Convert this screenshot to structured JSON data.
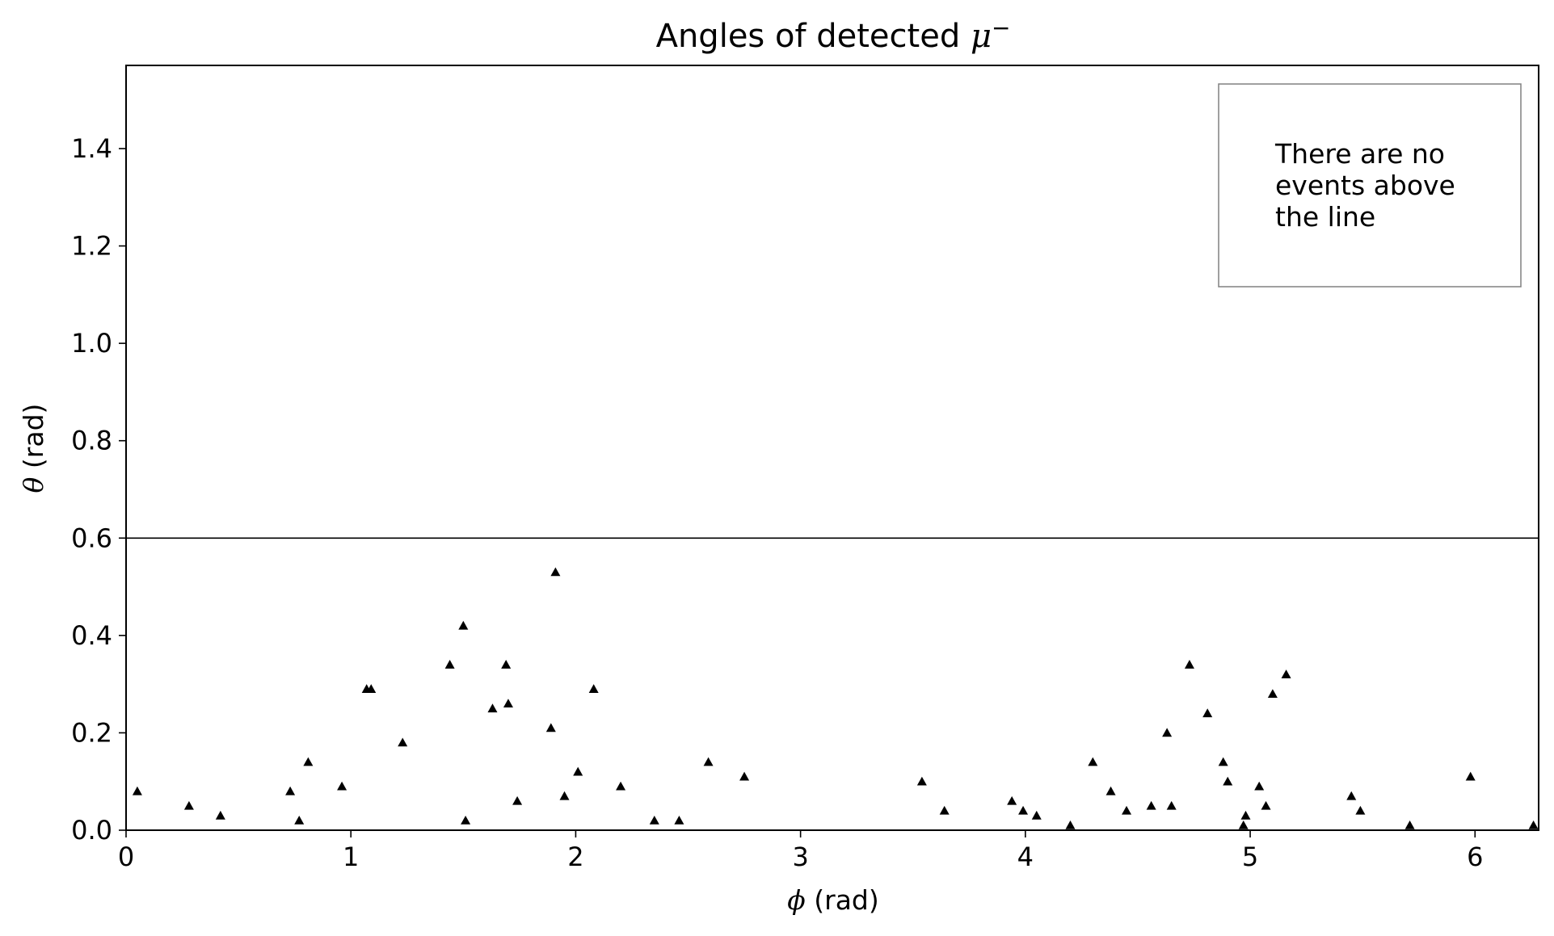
{
  "chart_data": {
    "type": "scatter",
    "title": "Angles of detected",
    "title_symbol": "μ",
    "title_superscript": "−",
    "xlabel_symbol": "ϕ",
    "xlabel_unit": "(rad)",
    "ylabel_symbol": "θ",
    "ylabel_unit": "(rad)",
    "xlim": [
      0,
      6.283
    ],
    "ylim": [
      0,
      1.5708
    ],
    "x_ticks": [
      0,
      1,
      2,
      3,
      4,
      5,
      6
    ],
    "x_tick_labels": [
      "0",
      "1",
      "2",
      "3",
      "4",
      "5",
      "6"
    ],
    "y_ticks": [
      0.0,
      0.2,
      0.4,
      0.6,
      0.8,
      1.0,
      1.2,
      1.4
    ],
    "y_tick_labels": [
      "0.0",
      "0.2",
      "0.4",
      "0.6",
      "0.8",
      "1.0",
      "1.2",
      "1.4"
    ],
    "grid": false,
    "marker": "triangle",
    "marker_color": "#000000",
    "hline": {
      "y": 0.6,
      "color": "#000000"
    },
    "annotation": {
      "lines": [
        "There are no",
        "events above",
        "the line"
      ],
      "placement": "top-right",
      "border_color": "#808080"
    },
    "series": [
      {
        "points": [
          [
            0.05,
            0.08
          ],
          [
            0.28,
            0.05
          ],
          [
            0.42,
            0.03
          ],
          [
            0.73,
            0.08
          ],
          [
            0.77,
            0.02
          ],
          [
            0.81,
            0.14
          ],
          [
            0.96,
            0.09
          ],
          [
            1.07,
            0.29
          ],
          [
            1.09,
            0.29
          ],
          [
            1.23,
            0.18
          ],
          [
            1.44,
            0.34
          ],
          [
            1.5,
            0.42
          ],
          [
            1.51,
            0.02
          ],
          [
            1.63,
            0.25
          ],
          [
            1.69,
            0.34
          ],
          [
            1.7,
            0.26
          ],
          [
            1.74,
            0.06
          ],
          [
            1.89,
            0.21
          ],
          [
            1.91,
            0.53
          ],
          [
            1.95,
            0.07
          ],
          [
            2.01,
            0.12
          ],
          [
            2.08,
            0.29
          ],
          [
            2.2,
            0.09
          ],
          [
            2.35,
            0.02
          ],
          [
            2.46,
            0.02
          ],
          [
            2.59,
            0.14
          ],
          [
            2.75,
            0.11
          ],
          [
            3.54,
            0.1
          ],
          [
            3.64,
            0.04
          ],
          [
            3.94,
            0.06
          ],
          [
            3.99,
            0.04
          ],
          [
            4.05,
            0.03
          ],
          [
            4.2,
            0.01
          ],
          [
            4.3,
            0.14
          ],
          [
            4.38,
            0.08
          ],
          [
            4.45,
            0.04
          ],
          [
            4.56,
            0.05
          ],
          [
            4.63,
            0.2
          ],
          [
            4.65,
            0.05
          ],
          [
            4.73,
            0.34
          ],
          [
            4.81,
            0.24
          ],
          [
            4.88,
            0.14
          ],
          [
            4.9,
            0.1
          ],
          [
            4.97,
            0.01
          ],
          [
            4.98,
            0.03
          ],
          [
            5.04,
            0.09
          ],
          [
            5.07,
            0.05
          ],
          [
            5.1,
            0.28
          ],
          [
            5.16,
            0.32
          ],
          [
            5.45,
            0.07
          ],
          [
            5.49,
            0.04
          ],
          [
            5.71,
            0.01
          ],
          [
            5.98,
            0.11
          ],
          [
            6.26,
            0.01
          ]
        ]
      }
    ]
  }
}
